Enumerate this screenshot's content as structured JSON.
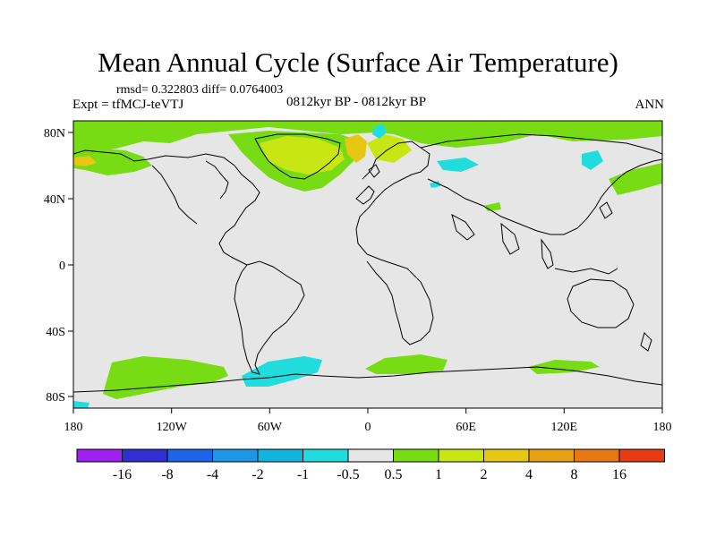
{
  "title": "Mean Annual Cycle (Surface Air Temperature)",
  "stats": "rmsd= 0.322803 diff= 0.0764003",
  "experiment": "Expt = tfMCJ-teVTJ",
  "period": "0812kyr BP - 0812kyr BP",
  "season": "ANN",
  "map": {
    "ocean_color": "#e6e6e6",
    "coastline_color": "#000000",
    "lon_ticks": [
      "180",
      "120W",
      "60W",
      "0",
      "60E",
      "120E",
      "180"
    ],
    "lat_ticks": [
      "80N",
      "40N",
      "0",
      "40S",
      "80S"
    ]
  },
  "colorbar": {
    "colors": [
      "#a020f0",
      "#3030d0",
      "#1e64e6",
      "#1e96e6",
      "#10b4dc",
      "#20dcdc",
      "#e6e6e6",
      "#78dc14",
      "#c8e614",
      "#e6c814",
      "#e6a014",
      "#e67814",
      "#e63c14"
    ],
    "labels": [
      "-16",
      "-8",
      "-4",
      "-2",
      "-1",
      "-0.5",
      "0.5",
      "1",
      "2",
      "4",
      "8",
      "16"
    ]
  }
}
